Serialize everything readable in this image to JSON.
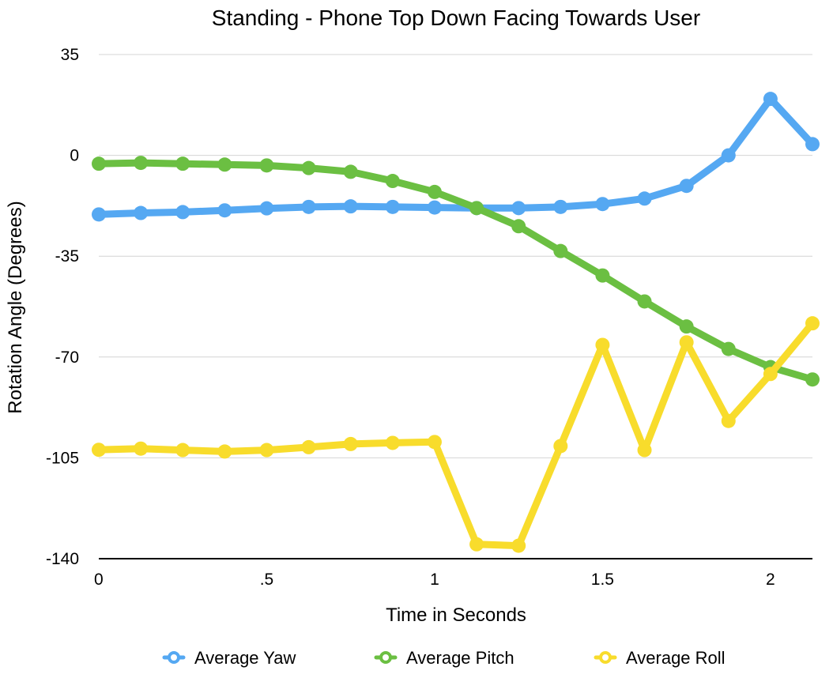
{
  "chart_data": {
    "type": "line",
    "title": "Standing - Phone Top Down Facing Towards User",
    "xlabel": "Time in Seconds",
    "ylabel": "Rotation Angle (Degrees)",
    "xlim": [
      0,
      2.125
    ],
    "ylim": [
      -140,
      35
    ],
    "x_ticks": [
      0,
      0.5,
      1,
      1.5,
      2
    ],
    "x_tick_labels": [
      "0",
      ".5",
      "1",
      "1.5",
      "2"
    ],
    "y_ticks": [
      35,
      0,
      -35,
      -70,
      -105,
      -140
    ],
    "y_tick_labels": [
      "35",
      "0",
      "-35",
      "-70",
      "-105",
      "-140"
    ],
    "grid": "horizontal",
    "legend_position": "bottom",
    "x": [
      0,
      0.125,
      0.25,
      0.375,
      0.5,
      0.625,
      0.75,
      0.875,
      1,
      1.125,
      1.25,
      1.375,
      1.5,
      1.625,
      1.75,
      1.875,
      2,
      2.125
    ],
    "series": [
      {
        "name": "Average Yaw",
        "color": "#55A8F2",
        "values": [
          -20.5,
          -20,
          -19.7,
          -19.1,
          -18.4,
          -17.9,
          -17.7,
          -17.9,
          -18.1,
          -18.3,
          -18.3,
          -17.9,
          -16.9,
          -15,
          -10.6,
          0,
          19.6,
          3.9
        ]
      },
      {
        "name": "Average Pitch",
        "color": "#6BBF42",
        "values": [
          -2.9,
          -2.6,
          -2.9,
          -3.2,
          -3.5,
          -4.4,
          -5.7,
          -8.9,
          -12.7,
          -18.3,
          -24.6,
          -33.2,
          -41.7,
          -50.7,
          -59.4,
          -67.2,
          -73.5,
          -77.8
        ]
      },
      {
        "name": "Average Roll",
        "color": "#F8DC2C",
        "values": [
          -102.2,
          -101.8,
          -102.3,
          -102.8,
          -102.3,
          -101.3,
          -100.2,
          -99.8,
          -99.5,
          -135,
          -135.5,
          -100.9,
          -65.8,
          -102.3,
          -64.9,
          -92.2,
          -75.9,
          -58.3
        ]
      }
    ]
  }
}
